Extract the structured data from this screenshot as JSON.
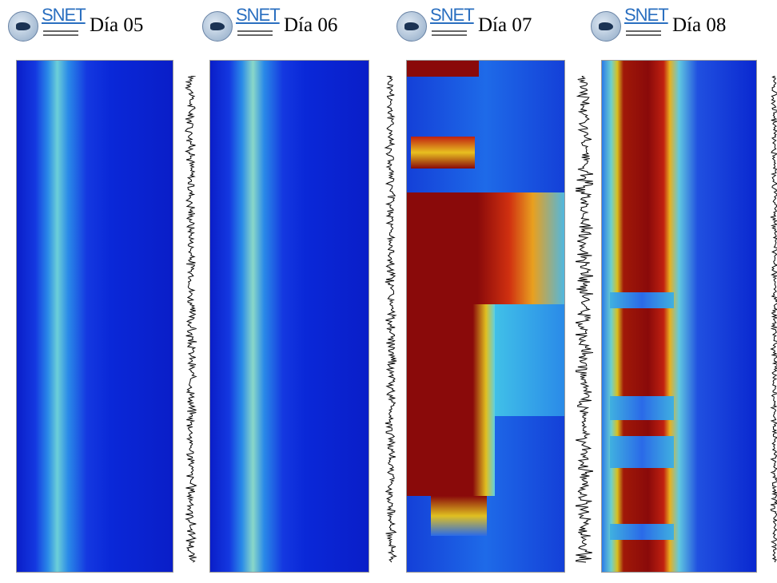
{
  "panels": [
    {
      "logo": "SNET",
      "day": "Día 05"
    },
    {
      "logo": "SNET",
      "day": "Día 06"
    },
    {
      "logo": "SNET",
      "day": "Día 07"
    },
    {
      "logo": "SNET",
      "day": "Día 08"
    }
  ]
}
